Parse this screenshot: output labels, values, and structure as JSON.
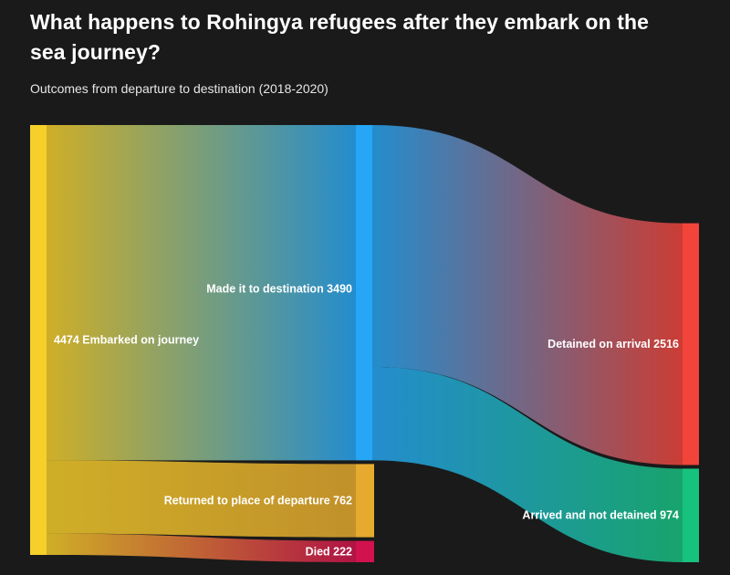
{
  "title": "What happens to Rohingya refugees after they embark on the sea journey?",
  "subtitle": "Outcomes from departure to destination (2018-2020)",
  "chart_data": {
    "type": "sankey",
    "nodes": [
      {
        "id": "embarked",
        "name": "Embarked on journey",
        "value": 4474,
        "label": "4474 Embarked on journey",
        "color": "#f7cf2a",
        "column": 0
      },
      {
        "id": "made_it",
        "name": "Made it to destination",
        "value": 3490,
        "label": "Made it to destination 3490",
        "color": "#26a6f5",
        "column": 1
      },
      {
        "id": "returned",
        "name": "Returned to place of departure",
        "value": 762,
        "label": "Returned to place of departure 762",
        "color": "#e6ab2e",
        "column": 1
      },
      {
        "id": "died",
        "name": "Died",
        "value": 222,
        "label": "Died 222",
        "color": "#d1124e",
        "column": 1
      },
      {
        "id": "detained",
        "name": "Detained on arrival",
        "value": 2516,
        "label": "Detained on arrival 2516",
        "color": "#f2443a",
        "column": 2
      },
      {
        "id": "arrived",
        "name": "Arrived and not detained",
        "value": 974,
        "label": "Arrived and not detained 974",
        "color": "#17c27f",
        "column": 2
      }
    ],
    "links": [
      {
        "source": "embarked",
        "target": "made_it",
        "value": 3490
      },
      {
        "source": "embarked",
        "target": "returned",
        "value": 762
      },
      {
        "source": "embarked",
        "target": "died",
        "value": 222
      },
      {
        "source": "made_it",
        "target": "detained",
        "value": 2516
      },
      {
        "source": "made_it",
        "target": "arrived",
        "value": 974
      }
    ]
  }
}
